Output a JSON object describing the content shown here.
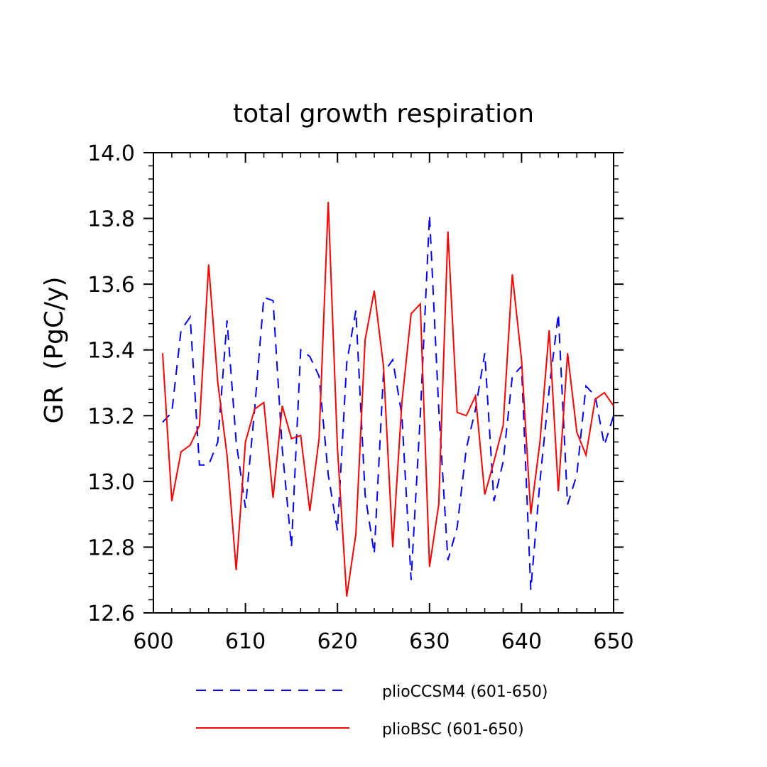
{
  "chart_data": {
    "type": "line",
    "title": "total growth respiration",
    "xlabel": "",
    "ylabel": "GR  (PgC/y)",
    "xlim": [
      600,
      650
    ],
    "ylim": [
      12.6,
      14.0
    ],
    "x_ticks": [
      600,
      610,
      620,
      630,
      640,
      650
    ],
    "y_ticks": [
      12.6,
      12.8,
      13.0,
      13.2,
      13.4,
      13.6,
      13.8,
      14.0
    ],
    "x_tick_labels": [
      "600",
      "610",
      "620",
      "630",
      "640",
      "650"
    ],
    "y_tick_labels": [
      "12.6",
      "12.8",
      "13.0",
      "13.2",
      "13.4",
      "13.6",
      "13.8",
      "14.0"
    ],
    "grid": false,
    "legend_position": "bottom",
    "series": [
      {
        "name": "plioCCSM4 (601-650)",
        "color": "#0000ff",
        "style": "dashed",
        "x": [
          601,
          602,
          603,
          604,
          605,
          606,
          607,
          608,
          609,
          610,
          611,
          612,
          613,
          614,
          615,
          616,
          617,
          618,
          619,
          620,
          621,
          622,
          623,
          624,
          625,
          626,
          627,
          628,
          629,
          630,
          631,
          632,
          633,
          634,
          635,
          636,
          637,
          638,
          639,
          640,
          641,
          642,
          643,
          644,
          645,
          646,
          647,
          648,
          649,
          650
        ],
        "values": [
          13.18,
          13.21,
          13.46,
          13.5,
          13.05,
          13.05,
          13.12,
          13.49,
          13.12,
          12.92,
          13.22,
          13.56,
          13.55,
          13.1,
          12.8,
          13.4,
          13.38,
          13.32,
          13.02,
          12.85,
          13.36,
          13.52,
          12.96,
          12.78,
          13.33,
          13.37,
          13.2,
          12.7,
          13.2,
          13.81,
          13.22,
          12.76,
          12.86,
          13.1,
          13.22,
          13.39,
          12.94,
          13.06,
          13.32,
          13.35,
          12.67,
          13.0,
          13.28,
          13.51,
          12.93,
          13.02,
          13.29,
          13.26,
          13.11,
          13.2
        ]
      },
      {
        "name": "plioBSC (601-650)",
        "color": "#ff0000",
        "style": "solid",
        "x": [
          601,
          602,
          603,
          604,
          605,
          606,
          607,
          608,
          609,
          610,
          611,
          612,
          613,
          614,
          615,
          616,
          617,
          618,
          619,
          620,
          621,
          622,
          623,
          624,
          625,
          626,
          627,
          628,
          629,
          630,
          631,
          632,
          633,
          634,
          635,
          636,
          637,
          638,
          639,
          640,
          641,
          642,
          643,
          644,
          645,
          646,
          647,
          648,
          649,
          650
        ],
        "values": [
          13.39,
          12.94,
          13.09,
          13.11,
          13.17,
          13.66,
          13.3,
          13.08,
          12.73,
          13.12,
          13.22,
          13.24,
          12.95,
          13.23,
          13.13,
          13.14,
          12.91,
          13.13,
          13.85,
          13.1,
          12.65,
          12.84,
          13.43,
          13.58,
          13.35,
          12.8,
          13.24,
          13.51,
          13.54,
          12.74,
          12.93,
          13.76,
          13.21,
          13.2,
          13.26,
          12.96,
          13.06,
          13.17,
          13.63,
          13.37,
          12.9,
          13.12,
          13.46,
          12.97,
          13.39,
          13.15,
          13.08,
          13.25,
          13.27,
          13.23
        ]
      }
    ]
  }
}
